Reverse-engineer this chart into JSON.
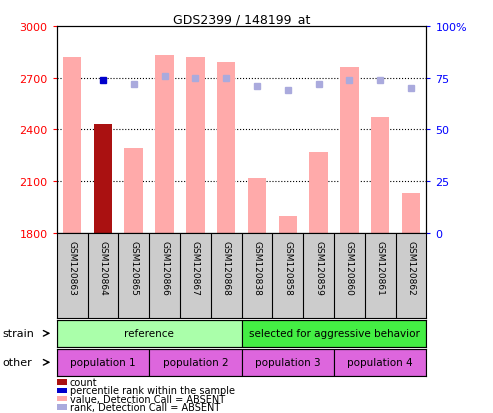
{
  "title": "GDS2399 / 148199_at",
  "samples": [
    "GSM120863",
    "GSM120864",
    "GSM120865",
    "GSM120866",
    "GSM120867",
    "GSM120868",
    "GSM120838",
    "GSM120858",
    "GSM120859",
    "GSM120860",
    "GSM120861",
    "GSM120862"
  ],
  "bar_values": [
    2820,
    2430,
    2290,
    2830,
    2820,
    2790,
    2120,
    1900,
    2270,
    2760,
    2470,
    2030
  ],
  "bar_colors": [
    "#ffaaaa",
    "#aa1111",
    "#ffaaaa",
    "#ffaaaa",
    "#ffaaaa",
    "#ffaaaa",
    "#ffaaaa",
    "#ffaaaa",
    "#ffaaaa",
    "#ffaaaa",
    "#ffaaaa",
    "#ffaaaa"
  ],
  "rank_values": [
    null,
    74,
    72,
    76,
    75,
    75,
    71,
    69,
    72,
    74,
    74,
    70
  ],
  "rank_colors": [
    "#ffaaaa",
    "#0000cc",
    "#aaaadd",
    "#aaaadd",
    "#aaaadd",
    "#aaaadd",
    "#aaaadd",
    "#aaaadd",
    "#aaaadd",
    "#aaaadd",
    "#aaaadd",
    "#aaaadd"
  ],
  "ylim_left": [
    1800,
    3000
  ],
  "ylim_right": [
    0,
    100
  ],
  "yticks_left": [
    1800,
    2100,
    2400,
    2700,
    3000
  ],
  "yticks_right": [
    0,
    25,
    50,
    75,
    100
  ],
  "ytick_right_labels": [
    "0",
    "25",
    "50",
    "75",
    "100%"
  ],
  "grid_values": [
    2100,
    2400,
    2700
  ],
  "strain_labels": [
    [
      "reference",
      0,
      6
    ],
    [
      "selected for aggressive behavior",
      6,
      12
    ]
  ],
  "strain_colors": [
    "#aaffaa",
    "#44ee44"
  ],
  "other_labels": [
    [
      "population 1",
      0,
      3
    ],
    [
      "population 2",
      3,
      6
    ],
    [
      "population 3",
      6,
      9
    ],
    [
      "population 4",
      9,
      12
    ]
  ],
  "other_color": "#dd66dd",
  "legend_items": [
    {
      "label": "count",
      "color": "#aa1111"
    },
    {
      "label": "percentile rank within the sample",
      "color": "#0000cc"
    },
    {
      "label": "value, Detection Call = ABSENT",
      "color": "#ffaaaa"
    },
    {
      "label": "rank, Detection Call = ABSENT",
      "color": "#aaaadd"
    }
  ],
  "bg_color": "#ffffff",
  "sample_label_bg": "#cccccc"
}
